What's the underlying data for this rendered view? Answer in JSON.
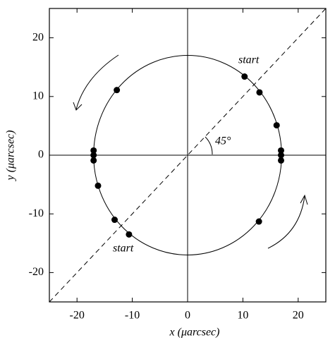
{
  "chart_data": {
    "type": "scatter",
    "xlabel": "x (μarcsec)",
    "ylabel": "y (μarcsec)",
    "xlim": [
      -25,
      25
    ],
    "ylim": [
      -25,
      25
    ],
    "xticks": [
      -20,
      -10,
      0,
      10,
      20
    ],
    "yticks": [
      -20,
      -10,
      0,
      10,
      20
    ],
    "grid": false,
    "color": "#000000",
    "circle_radius": 17,
    "annotations": [
      "start",
      "start",
      "45°"
    ],
    "series": [
      {
        "x": [
          10.3,
          13.0,
          -12.8,
          16.1,
          16.9,
          16.9,
          16.9,
          -17.0,
          -17.0,
          -17.0,
          -16.2,
          -13.2,
          -10.6,
          12.9
        ],
        "values": [
          13.4,
          10.7,
          11.1,
          5.1,
          0.8,
          0,
          -0.9,
          0.8,
          0,
          -0.9,
          -5.2,
          -11.0,
          -13.5,
          -11.3
        ]
      }
    ]
  }
}
